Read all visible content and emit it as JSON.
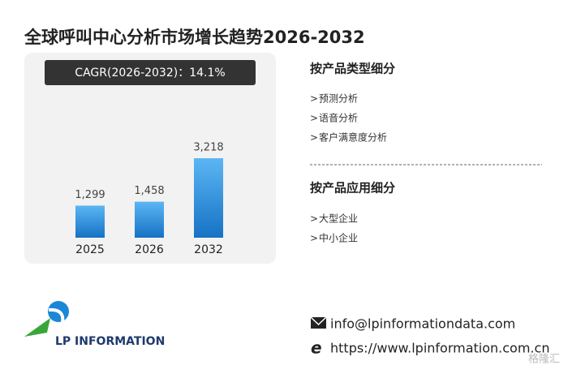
{
  "title": "全球呼叫中心分析市场增长趋势2026-2032",
  "chart_data": {
    "type": "bar",
    "annotation": "CAGR(2026-2032)：14.1%",
    "categories": [
      "2025",
      "2026",
      "2032"
    ],
    "values": [
      1299,
      1458,
      3218
    ],
    "value_labels": [
      "1,299",
      "1,458",
      "3,218"
    ],
    "color": "#2f8fde"
  },
  "segments": [
    {
      "heading": "按产品类型细分",
      "items": [
        "预测分析",
        "语音分析",
        "客户满意度分析"
      ]
    },
    {
      "heading": "按产品应用细分",
      "items": [
        "大型企业",
        "中小企业"
      ]
    }
  ],
  "logo": "LP INFORMATION",
  "contact": {
    "email": "info@lpinformationdata.com",
    "website": "https://www.lpinformation.com.cn"
  },
  "watermark": "格隆汇"
}
